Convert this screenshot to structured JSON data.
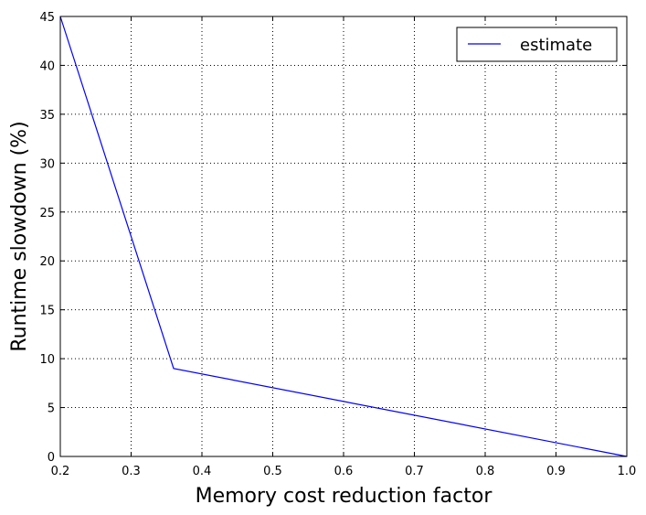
{
  "chart_data": {
    "type": "line",
    "title": "",
    "xlabel": "Memory cost reduction factor",
    "ylabel": "Runtime slowdown (%)",
    "xlim": [
      0.2,
      1.0
    ],
    "ylim": [
      0,
      45
    ],
    "xticks": [
      0.2,
      0.3,
      0.4,
      0.5,
      0.6,
      0.7,
      0.8,
      0.9,
      1.0
    ],
    "xtick_labels": [
      "0.2",
      "0.3",
      "0.4",
      "0.5",
      "0.6",
      "0.7",
      "0.8",
      "0.9",
      "1.0"
    ],
    "yticks": [
      0,
      5,
      10,
      15,
      20,
      25,
      30,
      35,
      40,
      45
    ],
    "ytick_labels": [
      "0",
      "5",
      "10",
      "15",
      "20",
      "25",
      "30",
      "35",
      "40",
      "45"
    ],
    "grid": true,
    "legend_position": "top-right",
    "series": [
      {
        "name": "estimate",
        "color": "#0000ff",
        "x": [
          0.2,
          0.36,
          1.0
        ],
        "y": [
          45,
          9,
          0
        ]
      }
    ]
  }
}
